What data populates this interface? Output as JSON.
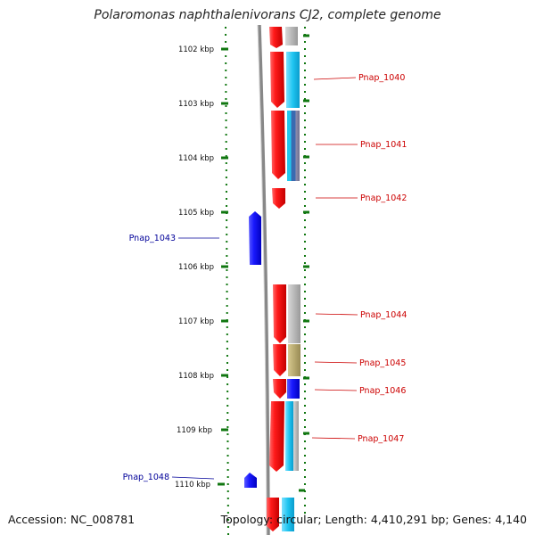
{
  "title": "Polaromonas naphthalenivorans CJ2, complete genome",
  "footer": {
    "accession": "Accession: NC_008781",
    "summary": "Topology: circular; Length: 4,410,291 bp; Genes: 4,140"
  },
  "ruler_ticks": [
    "1102 kbp",
    "1103 kbp",
    "1104 kbp",
    "1105 kbp",
    "1106 kbp",
    "1107 kbp",
    "1108 kbp",
    "1109 kbp",
    "1110 kbp"
  ],
  "gene_labels": [
    {
      "name": "Pnap_1040",
      "strand": "forward"
    },
    {
      "name": "Pnap_1041",
      "strand": "forward"
    },
    {
      "name": "Pnap_1042",
      "strand": "forward"
    },
    {
      "name": "Pnap_1043",
      "strand": "reverse"
    },
    {
      "name": "Pnap_1044",
      "strand": "forward"
    },
    {
      "name": "Pnap_1045",
      "strand": "forward"
    },
    {
      "name": "Pnap_1046",
      "strand": "forward"
    },
    {
      "name": "Pnap_1047",
      "strand": "forward"
    },
    {
      "name": "Pnap_1048",
      "strand": "reverse"
    }
  ],
  "colors": {
    "forward_gene": "#ee1111",
    "reverse_gene": "#1111ee",
    "forward_label": "#cc0000",
    "reverse_label": "#000099",
    "ruler": "#117711",
    "backbone": "#888888",
    "cog_grey": "#b8b8b8",
    "cog_cyan": "#22c8ee",
    "cog_olive": "#b8aa70",
    "cog_blue": "#1414f0"
  }
}
